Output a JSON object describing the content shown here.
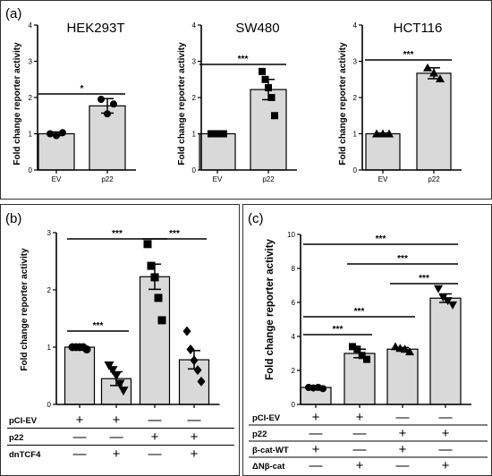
{
  "panels": {
    "a": {
      "letter": "(a)",
      "ylabel": "Fold change reporter activity",
      "charts": [
        {
          "title": "HEK293T",
          "sig": "*"
        },
        {
          "title": "SW480",
          "sig": "***"
        },
        {
          "title": "HCT116",
          "sig": "***"
        }
      ]
    },
    "b": {
      "letter": "(b)",
      "ylabel": "Fold change reporter activity",
      "rows": [
        {
          "label": "pCI-EV",
          "signs": [
            "+",
            "+",
            "—",
            "—"
          ]
        },
        {
          "label": "p22",
          "signs": [
            "—",
            "—",
            "+",
            "+"
          ]
        },
        {
          "label": "dnTCF4",
          "signs": [
            "—",
            "+",
            "—",
            "+"
          ]
        }
      ],
      "sigs": [
        "***",
        "***",
        "***"
      ]
    },
    "c": {
      "letter": "(c)",
      "ylabel": "Fold change reporter activity",
      "rows": [
        {
          "label": "pCI-EV",
          "signs": [
            "+",
            "+",
            "—",
            "—"
          ]
        },
        {
          "label": "p22",
          "signs": [
            "—",
            "—",
            "+",
            "+"
          ]
        },
        {
          "label": "β-cat-WT",
          "signs": [
            "+",
            "—",
            "+",
            "—"
          ]
        },
        {
          "label": "ΔNβ-cat",
          "signs": [
            "—",
            "+",
            "—",
            "+"
          ]
        }
      ],
      "sigs": [
        "***",
        "***",
        "***",
        "***",
        "***"
      ]
    }
  },
  "chart_data": [
    {
      "type": "bar",
      "title": "HEK293T",
      "ylabel": "Fold change reporter activity",
      "categories": [
        "EV",
        "p22"
      ],
      "values": [
        1.0,
        1.77
      ],
      "errors": [
        0.05,
        0.2
      ],
      "ylim": [
        0,
        4
      ],
      "yticks": [
        0,
        1,
        2,
        3,
        4
      ],
      "marker": "circle",
      "points": [
        [
          1.0,
          0.95,
          1.03
        ],
        [
          1.95,
          1.55,
          1.82
        ]
      ],
      "comparisons": [
        {
          "from": 0,
          "to": 1,
          "label": "*"
        }
      ]
    },
    {
      "type": "bar",
      "title": "SW480",
      "ylabel": "Fold change reporter activity",
      "categories": [
        "EV",
        "p22"
      ],
      "values": [
        1.0,
        2.22
      ],
      "errors": [
        0.03,
        0.28
      ],
      "ylim": [
        0,
        4
      ],
      "yticks": [
        0,
        1,
        2,
        3,
        4
      ],
      "marker": "square",
      "points": [
        [
          1.0,
          1.0,
          1.0,
          1.0,
          1.0
        ],
        [
          2.72,
          2.5,
          2.27,
          2.0,
          1.5
        ]
      ],
      "comparisons": [
        {
          "from": 0,
          "to": 1,
          "label": "***"
        }
      ]
    },
    {
      "type": "bar",
      "title": "HCT116",
      "ylabel": "Fold change reporter activity",
      "categories": [
        "EV",
        "p22"
      ],
      "values": [
        1.0,
        2.67
      ],
      "errors": [
        0.02,
        0.15
      ],
      "ylim": [
        0,
        4
      ],
      "yticks": [
        0,
        1,
        2,
        3,
        4
      ],
      "marker": "triangle",
      "points": [
        [
          1.0,
          1.0,
          1.0
        ],
        [
          2.82,
          2.68,
          2.52
        ]
      ],
      "comparisons": [
        {
          "from": 0,
          "to": 1,
          "label": "***"
        }
      ]
    },
    {
      "type": "bar",
      "ylabel": "Fold change reporter activity",
      "categories": [
        "",
        "",
        "",
        ""
      ],
      "values": [
        1.0,
        0.45,
        2.23,
        0.78
      ],
      "errors": [
        0.03,
        0.12,
        0.22,
        0.16
      ],
      "ylim": [
        0,
        3
      ],
      "yticks": [
        0,
        1,
        2,
        3
      ],
      "markers": [
        "circle",
        "triangle-down",
        "square",
        "diamond"
      ],
      "points": [
        [
          1.0,
          1.0,
          1.0,
          1.0,
          0.96
        ],
        [
          0.68,
          0.6,
          0.5,
          0.36,
          0.24
        ],
        [
          2.8,
          2.42,
          2.22,
          1.86,
          1.47
        ],
        [
          1.28,
          0.96,
          0.77,
          0.6,
          0.4
        ]
      ],
      "comparisons": [
        {
          "from": 0,
          "to": 1,
          "label": "***"
        },
        {
          "from": 0,
          "to": 2,
          "label": "***"
        },
        {
          "from": 2,
          "to": 3,
          "label": "***"
        }
      ]
    },
    {
      "type": "bar",
      "ylabel": "Fold change reporter activity",
      "categories": [
        "",
        "",
        "",
        ""
      ],
      "values": [
        1.0,
        3.0,
        3.25,
        6.25
      ],
      "errors": [
        0.05,
        0.25,
        0.1,
        0.25
      ],
      "ylim": [
        0,
        10
      ],
      "yticks": [
        0,
        2,
        4,
        6,
        8,
        10
      ],
      "markers": [
        "circle",
        "square",
        "triangle",
        "triangle-down"
      ],
      "points": [
        [
          1.0,
          0.97,
          1.0,
          0.93
        ],
        [
          3.4,
          3.25,
          2.88,
          2.65
        ],
        [
          3.4,
          3.3,
          3.25,
          3.1
        ],
        [
          6.8,
          6.3,
          6.1,
          5.85
        ]
      ],
      "comparisons": [
        {
          "from": 0,
          "to": 1,
          "label": "***"
        },
        {
          "from": 0,
          "to": 2,
          "label": "***"
        },
        {
          "from": 0,
          "to": 3,
          "label": "***"
        },
        {
          "from": 1,
          "to": 3,
          "label": "***"
        },
        {
          "from": 2,
          "to": 3,
          "label": "***"
        }
      ]
    }
  ]
}
